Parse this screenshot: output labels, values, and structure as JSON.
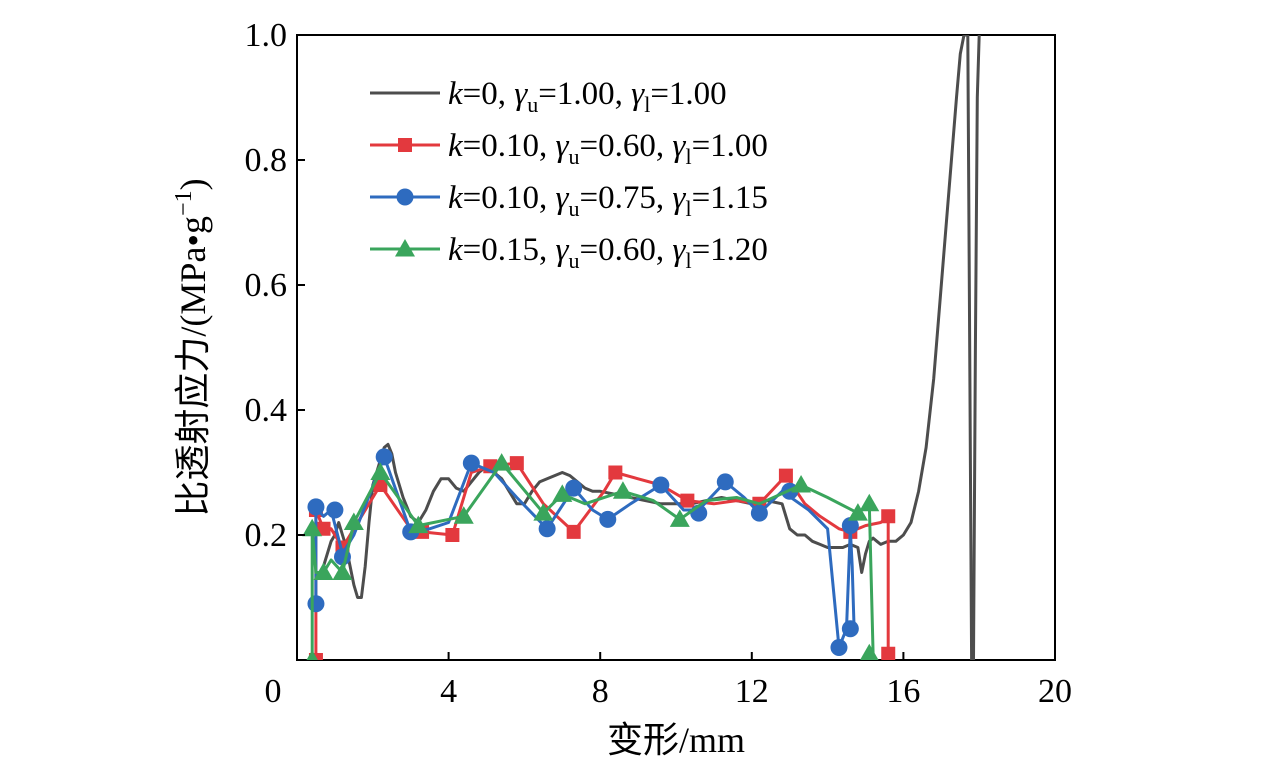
{
  "chart_data": {
    "type": "line",
    "title": "",
    "xlabel": "变形/mm",
    "ylabel_main": "比透射应力/(MPa",
    "ylabel_unit_tail": "g",
    "ylabel_exponent": "−1",
    "ylabel_close": ")",
    "xlim": [
      0,
      20
    ],
    "ylim": [
      0,
      1.0
    ],
    "x_ticks": [
      "0",
      "4",
      "8",
      "12",
      "16",
      "20"
    ],
    "y_ticks": [
      "0.2",
      "0.4",
      "0.6",
      "0.8",
      "1.0"
    ],
    "x_tick_values": [
      0,
      4,
      8,
      12,
      16,
      20
    ],
    "y_tick_values": [
      0.2,
      0.4,
      0.6,
      0.8,
      1.0
    ],
    "grid": false,
    "legend_position": "top-left",
    "series": [
      {
        "name": "k=0, γu=1.00, γl=1.00",
        "legend": {
          "k": "0",
          "gu": "1.00",
          "gl": "1.00"
        },
        "color": "#4d4d4d",
        "marker": "none",
        "x": [
          0.7,
          0.8,
          0.9,
          1.0,
          1.1,
          1.2,
          1.3,
          1.4,
          1.5,
          1.6,
          1.7,
          1.8,
          1.9,
          2.0,
          2.1,
          2.2,
          2.3,
          2.4,
          2.5,
          2.6,
          2.8,
          3.0,
          3.2,
          3.4,
          3.6,
          3.8,
          4.0,
          4.2,
          4.4,
          4.6,
          4.8,
          5.0,
          5.2,
          5.4,
          5.6,
          5.8,
          6.0,
          6.2,
          6.4,
          6.6,
          6.8,
          7.0,
          7.2,
          7.4,
          7.6,
          7.8,
          8.0,
          8.4,
          8.8,
          9.2,
          9.6,
          10.0,
          10.4,
          10.8,
          11.2,
          11.6,
          12.0,
          12.4,
          12.8,
          13.0,
          13.2,
          13.4,
          13.6,
          13.8,
          14.0,
          14.2,
          14.4,
          14.6,
          14.8,
          14.9,
          15.0,
          15.1,
          15.2,
          15.3,
          15.4,
          15.6,
          15.8,
          16.0,
          16.2,
          16.4,
          16.6,
          16.8,
          17.0,
          17.2,
          17.4,
          17.5,
          17.6,
          17.7,
          17.8,
          17.85
        ],
        "y": [
          0.15,
          0.17,
          0.19,
          0.2,
          0.22,
          0.2,
          0.18,
          0.15,
          0.12,
          0.1,
          0.1,
          0.15,
          0.22,
          0.28,
          0.3,
          0.32,
          0.34,
          0.345,
          0.33,
          0.3,
          0.26,
          0.23,
          0.22,
          0.24,
          0.27,
          0.29,
          0.29,
          0.275,
          0.27,
          0.285,
          0.3,
          0.31,
          0.3,
          0.29,
          0.27,
          0.25,
          0.25,
          0.27,
          0.285,
          0.29,
          0.295,
          0.3,
          0.295,
          0.285,
          0.275,
          0.27,
          0.27,
          0.265,
          0.26,
          0.255,
          0.25,
          0.25,
          0.25,
          0.255,
          0.26,
          0.255,
          0.25,
          0.255,
          0.25,
          0.21,
          0.2,
          0.2,
          0.19,
          0.185,
          0.18,
          0.18,
          0.18,
          0.185,
          0.18,
          0.14,
          0.17,
          0.19,
          0.195,
          0.19,
          0.185,
          0.19,
          0.19,
          0.2,
          0.22,
          0.27,
          0.34,
          0.45,
          0.6,
          0.75,
          0.9,
          0.97,
          1.0,
          1.0,
          0.0,
          0.0
        ],
        "x_return": [
          17.85,
          17.9,
          17.95,
          18.0
        ],
        "y_return": [
          0.0,
          0.5,
          0.9,
          1.0
        ]
      },
      {
        "name": "k=0.10, γu=0.60, γl=1.00",
        "legend": {
          "k": "0.10",
          "gu": "0.60",
          "gl": "1.00"
        },
        "color": "#e3393e",
        "marker": "square",
        "x": [
          0.5,
          0.5,
          0.5,
          0.7,
          0.9,
          1.2,
          1.5,
          2.2,
          3.0,
          3.3,
          4.1,
          4.6,
          5.1,
          5.8,
          6.5,
          7.3,
          8.1,
          8.4,
          9.0,
          9.6,
          10.3,
          11.0,
          11.6,
          12.2,
          12.9,
          13.4,
          13.8,
          14.3,
          14.6,
          15.0,
          15.4,
          15.6,
          15.6,
          15.6
        ],
        "y": [
          0.0,
          0.24,
          0.24,
          0.21,
          0.21,
          0.18,
          0.21,
          0.28,
          0.21,
          0.205,
          0.2,
          0.3,
          0.31,
          0.315,
          0.25,
          0.205,
          0.27,
          0.3,
          0.29,
          0.28,
          0.255,
          0.25,
          0.255,
          0.25,
          0.295,
          0.25,
          0.23,
          0.21,
          0.205,
          0.215,
          0.22,
          0.23,
          0.12,
          0.01
        ],
        "marker_x": [
          0.5,
          0.5,
          0.7,
          1.2,
          2.2,
          3.3,
          4.1,
          5.1,
          5.8,
          7.3,
          8.4,
          10.3,
          12.2,
          12.9,
          14.6,
          15.6,
          15.6
        ],
        "marker_y": [
          0.0,
          0.24,
          0.21,
          0.18,
          0.28,
          0.205,
          0.2,
          0.31,
          0.315,
          0.205,
          0.3,
          0.255,
          0.25,
          0.295,
          0.205,
          0.23,
          0.01
        ]
      },
      {
        "name": "k=0.10, γu=0.75, γl=1.15",
        "legend": {
          "k": "0.10",
          "gu": "0.75",
          "gl": "1.15"
        },
        "color": "#2e6bbf",
        "marker": "circle",
        "x": [
          0.5,
          0.5,
          0.7,
          0.9,
          1.2,
          1.5,
          2.3,
          3.0,
          3.5,
          4.0,
          4.6,
          5.2,
          5.8,
          6.6,
          7.3,
          7.8,
          8.2,
          8.8,
          9.6,
          10.2,
          10.6,
          11.3,
          11.8,
          12.2,
          12.8,
          13.5,
          14.0,
          14.3,
          14.5,
          14.6,
          14.65,
          14.7
        ],
        "y": [
          0.09,
          0.245,
          0.23,
          0.24,
          0.17,
          0.2,
          0.325,
          0.205,
          0.21,
          0.22,
          0.315,
          0.3,
          0.26,
          0.21,
          0.275,
          0.24,
          0.225,
          0.25,
          0.28,
          0.24,
          0.24,
          0.285,
          0.26,
          0.235,
          0.27,
          0.24,
          0.21,
          0.02,
          0.05,
          0.21,
          0.15,
          0.05
        ],
        "marker_x": [
          0.5,
          0.5,
          1.0,
          1.2,
          2.3,
          3.0,
          4.6,
          6.6,
          7.3,
          8.2,
          9.6,
          10.6,
          11.3,
          12.2,
          13.0,
          14.3,
          14.6,
          14.6
        ],
        "marker_y": [
          0.09,
          0.245,
          0.24,
          0.165,
          0.325,
          0.205,
          0.315,
          0.21,
          0.275,
          0.225,
          0.28,
          0.235,
          0.285,
          0.235,
          0.27,
          0.02,
          0.05,
          0.215
        ]
      },
      {
        "name": "k=0.15, γu=0.60, γl=1.20",
        "legend": {
          "k": "0.15",
          "gu": "0.60",
          "gl": "1.20"
        },
        "color": "#3aa55c",
        "marker": "triangle",
        "x": [
          0.4,
          0.4,
          0.5,
          0.7,
          0.9,
          1.2,
          1.5,
          2.2,
          3.2,
          4.4,
          5.4,
          6.5,
          7.0,
          7.6,
          8.6,
          9.4,
          10.1,
          10.8,
          11.6,
          12.2,
          13.3,
          14.0,
          14.8,
          15.1,
          15.15,
          15.2
        ],
        "y": [
          0.0,
          0.21,
          0.14,
          0.14,
          0.16,
          0.14,
          0.22,
          0.3,
          0.215,
          0.23,
          0.315,
          0.235,
          0.265,
          0.25,
          0.27,
          0.255,
          0.225,
          0.255,
          0.26,
          0.25,
          0.28,
          0.26,
          0.235,
          0.25,
          0.13,
          0.01
        ],
        "marker_x": [
          0.4,
          0.4,
          0.7,
          1.2,
          1.5,
          2.2,
          3.2,
          4.4,
          5.4,
          6.5,
          7.0,
          8.6,
          10.1,
          13.3,
          14.8,
          15.1,
          15.1
        ],
        "marker_y": [
          0.0,
          0.21,
          0.14,
          0.14,
          0.22,
          0.3,
          0.215,
          0.23,
          0.315,
          0.235,
          0.265,
          0.27,
          0.225,
          0.28,
          0.235,
          0.25,
          0.01
        ]
      }
    ]
  }
}
